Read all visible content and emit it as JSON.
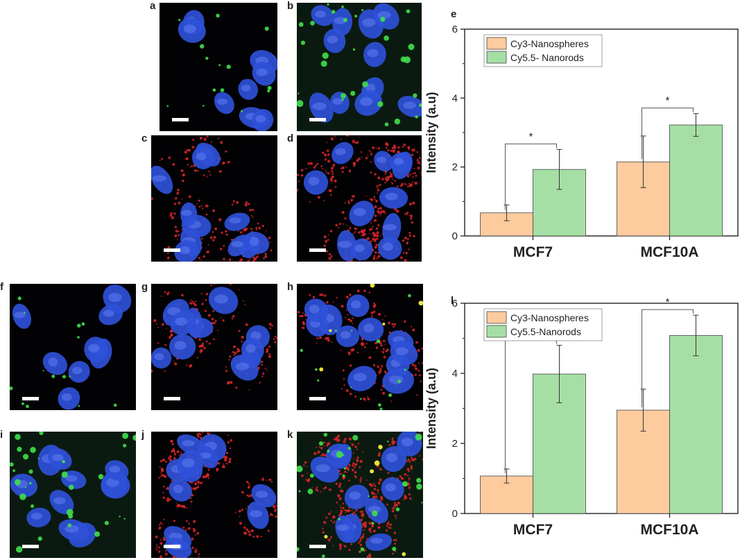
{
  "panels": [
    {
      "id": "a",
      "label": "a",
      "left": 230,
      "top": 4,
      "w": 170,
      "h": 185,
      "scheme": "green"
    },
    {
      "id": "b",
      "label": "b",
      "left": 428,
      "top": 4,
      "w": 180,
      "h": 185,
      "scheme": "green-bg"
    },
    {
      "id": "c",
      "label": "c",
      "left": 218,
      "top": 195,
      "w": 182,
      "h": 182,
      "scheme": "red"
    },
    {
      "id": "d",
      "label": "d",
      "left": 428,
      "top": 195,
      "w": 180,
      "h": 182,
      "scheme": "red-dense"
    },
    {
      "id": "f",
      "label": "f",
      "left": 14,
      "top": 409,
      "w": 182,
      "h": 182,
      "scheme": "green-sparse"
    },
    {
      "id": "g",
      "label": "g",
      "left": 218,
      "top": 409,
      "w": 182,
      "h": 182,
      "scheme": "red"
    },
    {
      "id": "h",
      "label": "h",
      "left": 428,
      "top": 409,
      "w": 182,
      "h": 182,
      "scheme": "merge"
    },
    {
      "id": "i",
      "label": "i",
      "left": 14,
      "top": 622,
      "w": 182,
      "h": 182,
      "scheme": "green-bg"
    },
    {
      "id": "j",
      "label": "j",
      "left": 218,
      "top": 622,
      "w": 182,
      "h": 182,
      "scheme": "red-dense"
    },
    {
      "id": "k",
      "label": "k",
      "left": 428,
      "top": 622,
      "w": 182,
      "h": 182,
      "scheme": "merge-dense"
    }
  ],
  "colors": {
    "nucleus": "#2f50d8",
    "green": "#3fe04a",
    "red": "#d9262a",
    "yellow": "#e8e23a",
    "bar_orange": "#fdcb9e",
    "bar_green": "#a6dfa6",
    "axis": "#222222"
  },
  "chart_data": [
    {
      "label": "e",
      "type": "bar",
      "categories": [
        "MCF7",
        "MCF10A"
      ],
      "ylabel": "Intensity (a.u)",
      "ylim": [
        0,
        6
      ],
      "yticks": [
        "0",
        "2",
        "4",
        "6"
      ],
      "legend": "top-left",
      "series": [
        {
          "name": "Cy3-Nanospheres",
          "values": [
            0.67,
            2.15
          ],
          "errors": [
            0.23,
            0.75
          ]
        },
        {
          "name": "Cy5.5- Nanorods",
          "values": [
            1.93,
            3.22
          ],
          "errors": [
            0.58,
            0.33
          ]
        }
      ],
      "annotations": [
        "*",
        "*"
      ]
    },
    {
      "label": "l",
      "type": "bar",
      "categories": [
        "MCF7",
        "MCF10A"
      ],
      "ylabel": "Intensity (a.u)",
      "ylim": [
        0,
        6
      ],
      "yticks": [
        "0",
        "2",
        "4",
        "6"
      ],
      "legend": "top-left",
      "series": [
        {
          "name": "Cy3-Nanospheres",
          "values": [
            1.07,
            2.95
          ],
          "errors": [
            0.2,
            0.6
          ]
        },
        {
          "name": "Cy5.5-Nanorods",
          "values": [
            3.98,
            5.08
          ],
          "errors": [
            0.82,
            0.58
          ]
        }
      ],
      "annotations": [
        "*",
        "*"
      ]
    }
  ]
}
